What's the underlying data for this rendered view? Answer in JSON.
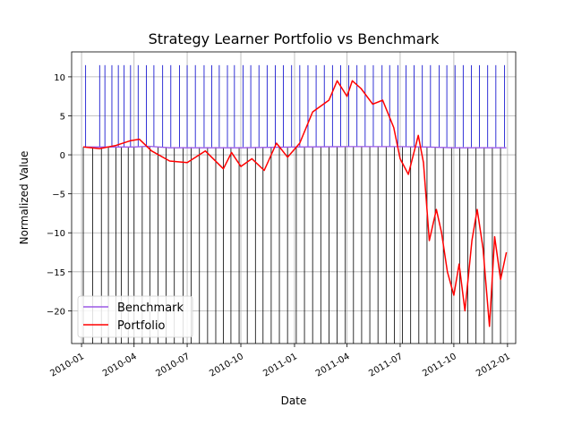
{
  "chart_data": {
    "type": "line",
    "title": "Strategy Learner Portfolio vs Benchmark",
    "xlabel": "Date",
    "ylabel": "Normalized Value",
    "xlim": [
      "2009-12-15",
      "2012-01-15"
    ],
    "ylim": [
      -24.2,
      13.2
    ],
    "x_ticks": [
      "2010-01",
      "2010-04",
      "2010-07",
      "2010-10",
      "2011-01",
      "2011-04",
      "2011-07",
      "2011-10",
      "2012-01"
    ],
    "y_ticks": [
      10,
      5,
      0,
      -5,
      -10,
      -15,
      -20
    ],
    "y_tick_labels": [
      "10",
      "5",
      "0",
      "−5",
      "−10",
      "−15",
      "−20"
    ],
    "grid": true,
    "legend": {
      "position": "lower-left",
      "entries": [
        "Benchmark",
        "Portfolio"
      ]
    },
    "colors": {
      "benchmark": "#9b59e6",
      "portfolio": "#ff0000",
      "long_lines": "#0000cc",
      "short_lines": "#000000"
    },
    "series": [
      {
        "name": "Benchmark",
        "x": [
          "2010-01-04",
          "2010-02-15",
          "2010-04-01",
          "2010-04-26",
          "2010-06-01",
          "2010-08-01",
          "2010-10-01",
          "2011-01-01",
          "2011-04-01",
          "2011-07-01",
          "2011-08-15",
          "2011-10-01",
          "2011-12-30"
        ],
        "values": [
          1.0,
          1.0,
          1.0,
          1.1,
          0.9,
          0.9,
          0.9,
          1.0,
          1.05,
          1.05,
          1.0,
          0.9,
          0.9
        ]
      },
      {
        "name": "Portfolio",
        "x": [
          "2010-01-04",
          "2010-02-01",
          "2010-03-01",
          "2010-03-25",
          "2010-04-10",
          "2010-05-01",
          "2010-06-01",
          "2010-07-01",
          "2010-08-01",
          "2010-09-01",
          "2010-09-15",
          "2010-10-01",
          "2010-10-20",
          "2010-11-10",
          "2010-12-01",
          "2010-12-20",
          "2011-01-10",
          "2011-02-01",
          "2011-03-01",
          "2011-03-15",
          "2011-04-01",
          "2011-04-10",
          "2011-04-25",
          "2011-05-15",
          "2011-06-01",
          "2011-06-20",
          "2011-07-01",
          "2011-07-15",
          "2011-08-01",
          "2011-08-10",
          "2011-08-20",
          "2011-09-01",
          "2011-09-10",
          "2011-09-20",
          "2011-10-01",
          "2011-10-10",
          "2011-10-20",
          "2011-11-01",
          "2011-11-10",
          "2011-11-20",
          "2011-12-01",
          "2011-12-10",
          "2011-12-20",
          "2011-12-30"
        ],
        "values": [
          1.0,
          0.8,
          1.2,
          1.8,
          2.0,
          0.5,
          -0.8,
          -1.0,
          0.5,
          -1.8,
          0.3,
          -1.5,
          -0.5,
          -2.0,
          1.5,
          -0.3,
          1.5,
          5.5,
          7.0,
          9.5,
          7.5,
          9.5,
          8.5,
          6.5,
          7.0,
          3.5,
          -0.5,
          -2.5,
          2.5,
          -1.0,
          -11.0,
          -7.0,
          -10.0,
          -15.0,
          -18.0,
          -14.0,
          -20.0,
          -11.0,
          -7.0,
          -12.0,
          -22.0,
          -10.5,
          -16.0,
          -12.5
        ]
      }
    ],
    "trade_lines": {
      "long": [
        "2010-01-08",
        "2010-02-01",
        "2010-02-10",
        "2010-02-22",
        "2010-03-05",
        "2010-03-15",
        "2010-03-26",
        "2010-04-08",
        "2010-04-22",
        "2010-05-05",
        "2010-05-20",
        "2010-06-03",
        "2010-06-18",
        "2010-07-01",
        "2010-07-15",
        "2010-07-30",
        "2010-08-12",
        "2010-08-25",
        "2010-09-08",
        "2010-09-20",
        "2010-10-05",
        "2010-10-18",
        "2010-11-01",
        "2010-11-15",
        "2010-11-29",
        "2010-12-13",
        "2010-12-27",
        "2011-01-10",
        "2011-01-24",
        "2011-02-07",
        "2011-02-21",
        "2011-03-07",
        "2011-03-21",
        "2011-04-04",
        "2011-04-18",
        "2011-05-02",
        "2011-05-16",
        "2011-05-31",
        "2011-06-13",
        "2011-06-27",
        "2011-07-11",
        "2011-07-25",
        "2011-08-08",
        "2011-08-22",
        "2011-09-06",
        "2011-09-19",
        "2011-10-03",
        "2011-10-17",
        "2011-10-31",
        "2011-11-14",
        "2011-11-28",
        "2011-12-12",
        "2011-12-27"
      ],
      "short": [
        "2010-01-04",
        "2010-01-20",
        "2010-02-04",
        "2010-02-16",
        "2010-03-01",
        "2010-03-10",
        "2010-03-22",
        "2010-04-01",
        "2010-04-15",
        "2010-04-28",
        "2010-05-12",
        "2010-05-26",
        "2010-06-09",
        "2010-06-24",
        "2010-07-08",
        "2010-07-22",
        "2010-08-05",
        "2010-08-19",
        "2010-09-01",
        "2010-09-14",
        "2010-09-28",
        "2010-10-12",
        "2010-10-26",
        "2010-11-08",
        "2010-11-22",
        "2010-12-06",
        "2010-12-20",
        "2011-01-04",
        "2011-01-18",
        "2011-02-01",
        "2011-02-15",
        "2011-03-01",
        "2011-03-15",
        "2011-03-29",
        "2011-04-12",
        "2011-04-26",
        "2011-05-10",
        "2011-05-24",
        "2011-06-07",
        "2011-06-21",
        "2011-07-05",
        "2011-07-19",
        "2011-08-02",
        "2011-08-16",
        "2011-08-30",
        "2011-09-13",
        "2011-09-27",
        "2011-10-11",
        "2011-10-25",
        "2011-11-08",
        "2011-11-22",
        "2011-12-06",
        "2011-12-20"
      ]
    }
  }
}
